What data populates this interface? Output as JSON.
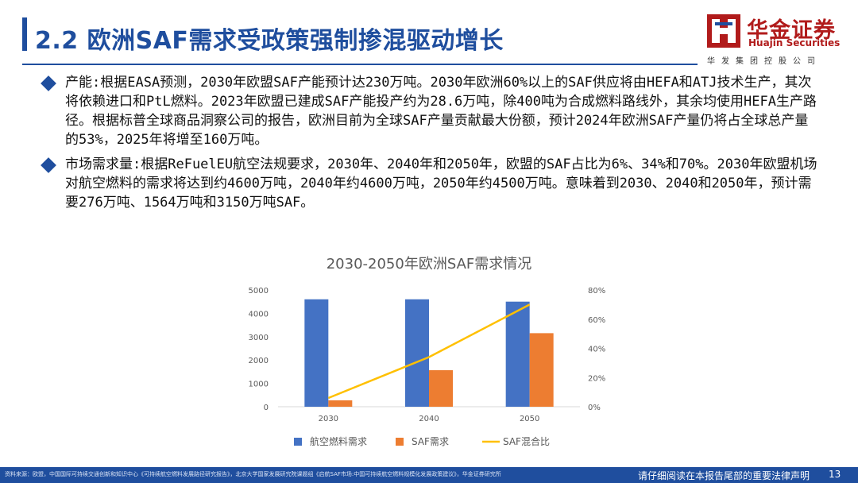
{
  "header": {
    "title": "2.2 欧洲SAF需求受政策强制掺混驱动增长"
  },
  "logo": {
    "name_cn": "华金证券",
    "name_en": "Huajin Securities",
    "subtitle": "华发集团控股公司",
    "mark_icon": "huajin-logo-icon"
  },
  "bullets": [
    {
      "text": "产能:根据EASA预测，2030年欧盟SAF产能预计达230万吨。2030年欧洲60%以上的SAF供应将由HEFA和ATJ技术生产，其次将依赖进口和PtL燃料。2023年欧盟已建成SAF产能投产约为28.6万吨，除400吨为合成燃料路线外，其余均使用HEFA生产路径。根据标普全球商品洞察公司的报告，欧洲目前为全球SAF产量贡献最大份额，预计2024年欧洲SAF产量仍将占全球总产量的53%，2025年将增至160万吨。"
    },
    {
      "text": "市场需求量:根据ReFuelEU航空法规要求，2030年、2040年和2050年，欧盟的SAF占比为6%、34%和70%。2030年欧盟机场对航空燃料的需求将达到约4600万吨，2040年约4600万吨，2050年约4500万吨。意味着到2030、2040和2050年，预计需要276万吨、1564万吨和3150万吨SAF。"
    }
  ],
  "chart_data": {
    "type": "bar",
    "title": "2030-2050年欧洲SAF需求情况",
    "categories": [
      "2030",
      "2040",
      "2050"
    ],
    "series": [
      {
        "name": "航空燃料需求",
        "type": "bar",
        "axis": "left",
        "values": [
          4600,
          4600,
          4500
        ],
        "color": "#4472c4"
      },
      {
        "name": "SAF需求",
        "type": "bar",
        "axis": "left",
        "values": [
          276,
          1564,
          3150
        ],
        "color": "#ed7d31"
      },
      {
        "name": "SAF混合比",
        "type": "line",
        "axis": "right",
        "values": [
          6,
          34,
          70
        ],
        "color": "#ffc000"
      }
    ],
    "ylim": [
      0,
      5000
    ],
    "yticks": [
      "0",
      "1000",
      "2000",
      "3000",
      "4000",
      "5000"
    ],
    "y2lim": [
      0,
      80
    ],
    "y2ticks": [
      "0%",
      "20%",
      "40%",
      "60%",
      "80%"
    ],
    "grid": false,
    "legend": "bottom"
  },
  "footer": {
    "source": "资料来源：欧盟，中国国际可持续交通创新和知识中心《可持续航空燃料发展路径研究报告》，北京大学国家发展研究院课题组《启航SAF市场:中国可持续航空燃料规模化发展政策建议》，华金证券研究所",
    "legal": "请仔细阅读在本报告尾部的重要法律声明",
    "page": "13"
  }
}
